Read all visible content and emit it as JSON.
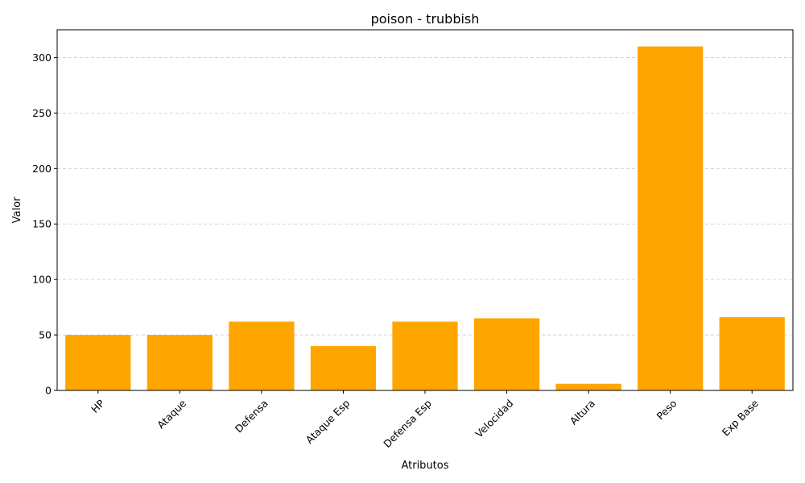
{
  "chart_data": {
    "type": "bar",
    "title": "poison - trubbish",
    "xlabel": "Atributos",
    "ylabel": "Valor",
    "categories": [
      "HP",
      "Ataque",
      "Defensa",
      "Ataque Esp",
      "Defensa Esp",
      "Velocidad",
      "Altura",
      "Peso",
      "Exp Base"
    ],
    "values": [
      50,
      50,
      62,
      40,
      62,
      65,
      6,
      310,
      66
    ],
    "ylim": [
      0,
      325
    ],
    "yticks": [
      0,
      50,
      100,
      150,
      200,
      250,
      300
    ],
    "grid": "y-dashed",
    "bar_color": "#FFA500",
    "grid_color": "#cccccc",
    "xtick_rotation": 45
  }
}
